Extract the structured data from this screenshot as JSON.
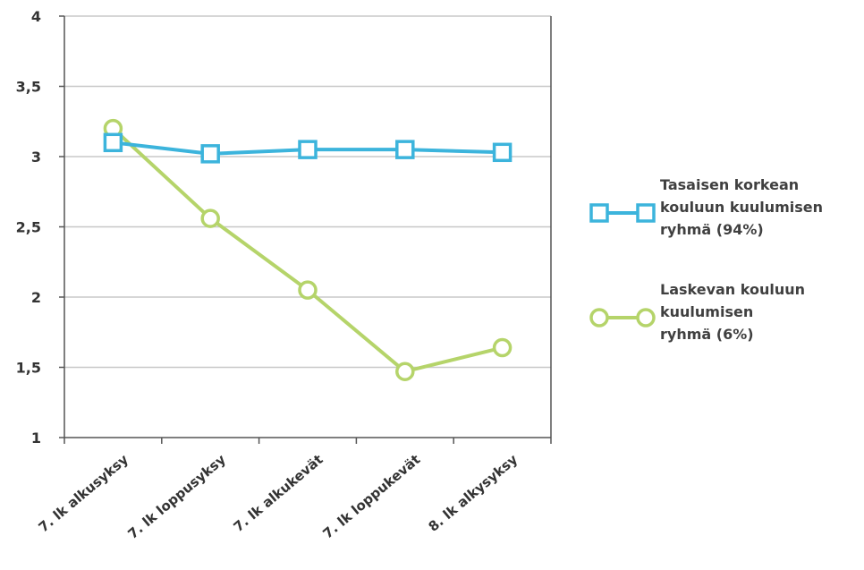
{
  "chart_data": {
    "type": "line",
    "categories": [
      "7. lk alkusyksy",
      "7. lk loppusyksy",
      "7. lk alkukevät",
      "7. lk loppukevät",
      "8. lk alkysyksy"
    ],
    "series": [
      {
        "name": "Tasaisen korkean kouluun kuulumisen ryhmä (94%)",
        "name_lines": [
          "Tasaisen korkean",
          "kouluun kuulumisen",
          "ryhmä (94%)"
        ],
        "values": [
          3.1,
          3.02,
          3.05,
          3.05,
          3.03
        ],
        "color": "#3cb4dc",
        "marker": "square"
      },
      {
        "name": "Laskevan kouluun kuulumisen ryhmä (6%)",
        "name_lines": [
          "Laskevan kouluun",
          "kuulumisen",
          "ryhmä (6%)"
        ],
        "values": [
          3.2,
          2.56,
          2.05,
          1.47,
          1.64
        ],
        "color": "#b5d46a",
        "marker": "circle"
      }
    ],
    "ylim": [
      1,
      4
    ],
    "yticks": [
      1,
      1.5,
      2,
      2.5,
      3,
      3.5,
      4
    ],
    "ytick_labels": [
      "1",
      "1,5",
      "2",
      "2,5",
      "3",
      "3,5",
      "4"
    ],
    "grid": true,
    "legend": "right",
    "title": "",
    "xlabel": "",
    "ylabel": ""
  }
}
